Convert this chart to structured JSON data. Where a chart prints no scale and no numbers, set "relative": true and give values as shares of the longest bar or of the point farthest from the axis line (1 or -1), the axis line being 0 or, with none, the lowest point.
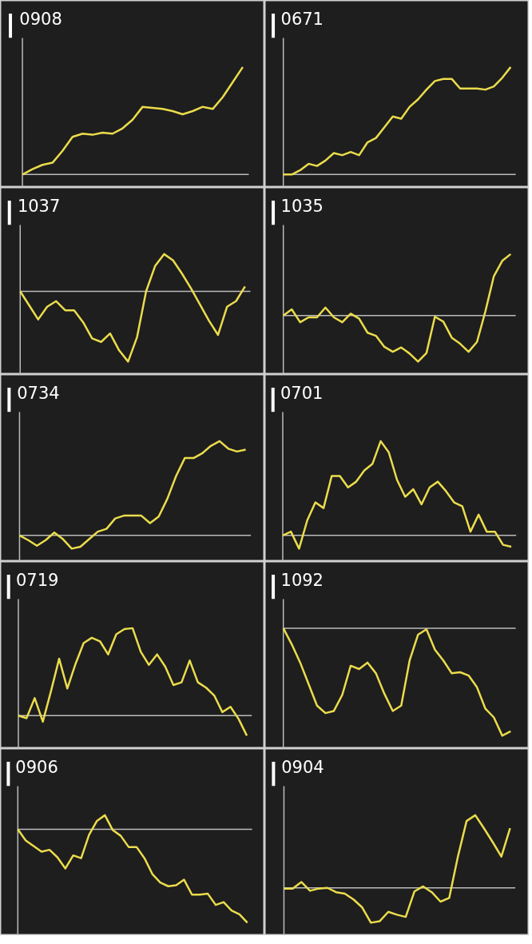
{
  "chart_data": [
    {
      "type": "line",
      "title": "0908",
      "relative": true,
      "categories": [
        null,
        null,
        null,
        null,
        null,
        null,
        null,
        null,
        null,
        null,
        null,
        null,
        null,
        null,
        null,
        null,
        null,
        null,
        null,
        null,
        null,
        null,
        null
      ],
      "series": [
        {
          "color": "#ebdc4c",
          "values": [
            0,
            0.05,
            0.09,
            0.11,
            0.22,
            0.35,
            0.38,
            0.37,
            0.39,
            0.38,
            0.43,
            0.51,
            0.63,
            0.62,
            0.61,
            0.59,
            0.56,
            0.59,
            0.63,
            0.61,
            0.72,
            0.86,
            1
          ]
        }
      ]
    },
    {
      "type": "line",
      "title": "0671",
      "relative": true,
      "categories": [
        null,
        null,
        null,
        null,
        null,
        null,
        null,
        null,
        null,
        null,
        null,
        null,
        null,
        null,
        null,
        null,
        null,
        null,
        null,
        null,
        null,
        null,
        null,
        null,
        null,
        null,
        null,
        null
      ],
      "series": [
        {
          "color": "#ebdc4c",
          "values": [
            0,
            0,
            0.04,
            0.1,
            0.08,
            0.13,
            0.2,
            0.18,
            0.21,
            0.18,
            0.3,
            0.34,
            0.44,
            0.54,
            0.52,
            0.63,
            0.7,
            0.79,
            0.87,
            0.89,
            0.89,
            0.8,
            0.8,
            0.8,
            0.79,
            0.82,
            0.9,
            1
          ]
        }
      ]
    },
    {
      "type": "line",
      "title": "1037",
      "relative": true,
      "categories": [
        null,
        null,
        null,
        null,
        null,
        null,
        null,
        null,
        null,
        null,
        null,
        null,
        null,
        null,
        null,
        null,
        null,
        null,
        null,
        null,
        null,
        null,
        null,
        null,
        null,
        null
      ],
      "series": [
        {
          "color": "#ebdc4c",
          "values": [
            0,
            -0.2,
            -0.4,
            -0.22,
            -0.14,
            -0.27,
            -0.27,
            -0.44,
            -0.67,
            -0.72,
            -0.6,
            -0.84,
            -1,
            -0.65,
            0,
            0.36,
            0.53,
            0.44,
            0.25,
            0.04,
            -0.19,
            -0.42,
            -0.62,
            -0.22,
            -0.14,
            0.07
          ]
        }
      ]
    },
    {
      "type": "line",
      "title": "1035",
      "relative": true,
      "categories": [
        null,
        null,
        null,
        null,
        null,
        null,
        null,
        null,
        null,
        null,
        null,
        null,
        null,
        null,
        null,
        null,
        null,
        null,
        null,
        null,
        null,
        null,
        null,
        null,
        null,
        null,
        null,
        null
      ],
      "series": [
        {
          "color": "#ebdc4c",
          "values": [
            0,
            0.1,
            -0.11,
            -0.03,
            -0.03,
            0.13,
            -0.03,
            -0.11,
            0.03,
            -0.05,
            -0.28,
            -0.33,
            -0.51,
            -0.59,
            -0.52,
            -0.62,
            -0.75,
            -0.61,
            -0.02,
            -0.1,
            -0.36,
            -0.46,
            -0.59,
            -0.43,
            0.07,
            0.64,
            0.89,
            1
          ]
        }
      ]
    },
    {
      "type": "line",
      "title": "0734",
      "relative": true,
      "categories": [
        null,
        null,
        null,
        null,
        null,
        null,
        null,
        null,
        null,
        null,
        null,
        null,
        null,
        null,
        null,
        null,
        null,
        null,
        null,
        null,
        null,
        null,
        null,
        null,
        null,
        null,
        null
      ],
      "series": [
        {
          "color": "#ebdc4c",
          "values": [
            0,
            -0.05,
            -0.11,
            -0.05,
            0.03,
            -0.04,
            -0.14,
            -0.12,
            -0.04,
            0.04,
            0.07,
            0.18,
            0.21,
            0.21,
            0.21,
            0.13,
            0.2,
            0.39,
            0.63,
            0.82,
            0.82,
            0.87,
            0.95,
            1,
            0.92,
            0.89,
            0.91
          ]
        }
      ]
    },
    {
      "type": "line",
      "title": "0701",
      "relative": true,
      "categories": [
        null,
        null,
        null,
        null,
        null,
        null,
        null,
        null,
        null,
        null,
        null,
        null,
        null,
        null,
        null,
        null,
        null,
        null,
        null,
        null,
        null,
        null,
        null,
        null,
        null,
        null,
        null,
        null,
        null
      ],
      "series": [
        {
          "color": "#ebdc4c",
          "values": [
            0,
            0.04,
            -0.14,
            0.16,
            0.35,
            0.29,
            0.63,
            0.63,
            0.51,
            0.57,
            0.69,
            0.76,
            1,
            0.88,
            0.59,
            0.41,
            0.49,
            0.33,
            0.51,
            0.57,
            0.47,
            0.35,
            0.31,
            0.04,
            0.22,
            0.04,
            0.04,
            -0.1,
            -0.12
          ]
        }
      ]
    },
    {
      "type": "line",
      "title": "0719",
      "relative": true,
      "categories": [
        null,
        null,
        null,
        null,
        null,
        null,
        null,
        null,
        null,
        null,
        null,
        null,
        null,
        null,
        null,
        null,
        null,
        null,
        null,
        null,
        null,
        null,
        null,
        null,
        null,
        null,
        null,
        null,
        null
      ],
      "series": [
        {
          "color": "#ebdc4c",
          "values": [
            0,
            -0.03,
            0.2,
            -0.07,
            0.28,
            0.65,
            0.31,
            0.59,
            0.83,
            0.89,
            0.85,
            0.7,
            0.93,
            0.99,
            1,
            0.73,
            0.58,
            0.7,
            0.56,
            0.35,
            0.38,
            0.63,
            0.38,
            0.32,
            0.23,
            0.04,
            0.1,
            -0.04,
            -0.23
          ]
        }
      ]
    },
    {
      "type": "line",
      "title": "1092",
      "relative": true,
      "categories": [
        null,
        null,
        null,
        null,
        null,
        null,
        null,
        null,
        null,
        null,
        null,
        null,
        null,
        null,
        null,
        null,
        null,
        null,
        null,
        null,
        null,
        null,
        null,
        null,
        null,
        null,
        null,
        null
      ],
      "series": [
        {
          "color": "#ebdc4c",
          "values": [
            0,
            -0.15,
            -0.32,
            -0.52,
            -0.72,
            -0.79,
            -0.77,
            -0.62,
            -0.35,
            -0.38,
            -0.32,
            -0.42,
            -0.61,
            -0.77,
            -0.72,
            -0.3,
            -0.06,
            -0.01,
            -0.2,
            -0.3,
            -0.42,
            -0.41,
            -0.44,
            -0.55,
            -0.75,
            -0.83,
            -1,
            -0.96
          ]
        }
      ]
    },
    {
      "type": "line",
      "title": "0906",
      "relative": true,
      "categories": [
        null,
        null,
        null,
        null,
        null,
        null,
        null,
        null,
        null,
        null,
        null,
        null,
        null,
        null,
        null,
        null,
        null,
        null,
        null,
        null,
        null,
        null,
        null,
        null,
        null,
        null,
        null,
        null,
        null,
        null
      ],
      "series": [
        {
          "color": "#ebdc4c",
          "values": [
            0,
            -0.12,
            -0.18,
            -0.24,
            -0.22,
            -0.3,
            -0.42,
            -0.28,
            -0.31,
            -0.06,
            0.09,
            0.15,
            -0.01,
            -0.07,
            -0.19,
            -0.19,
            -0.31,
            -0.48,
            -0.57,
            -0.61,
            -0.6,
            -0.54,
            -0.7,
            -0.7,
            -0.69,
            -0.81,
            -0.78,
            -0.87,
            -0.91,
            -1
          ]
        }
      ]
    },
    {
      "type": "line",
      "title": "0904",
      "relative": true,
      "categories": [
        null,
        null,
        null,
        null,
        null,
        null,
        null,
        null,
        null,
        null,
        null,
        null,
        null,
        null,
        null,
        null,
        null,
        null,
        null,
        null,
        null,
        null,
        null,
        null,
        null,
        null,
        null
      ],
      "series": [
        {
          "color": "#ebdc4c",
          "values": [
            -0.01,
            -0.01,
            0.08,
            -0.04,
            -0.01,
            0,
            -0.06,
            -0.08,
            -0.16,
            -0.27,
            -0.48,
            -0.46,
            -0.33,
            -0.37,
            -0.4,
            -0.05,
            0.02,
            -0.06,
            -0.19,
            -0.14,
            0.43,
            0.92,
            1,
            0.82,
            0.63,
            0.43,
            0.82
          ]
        }
      ]
    }
  ]
}
